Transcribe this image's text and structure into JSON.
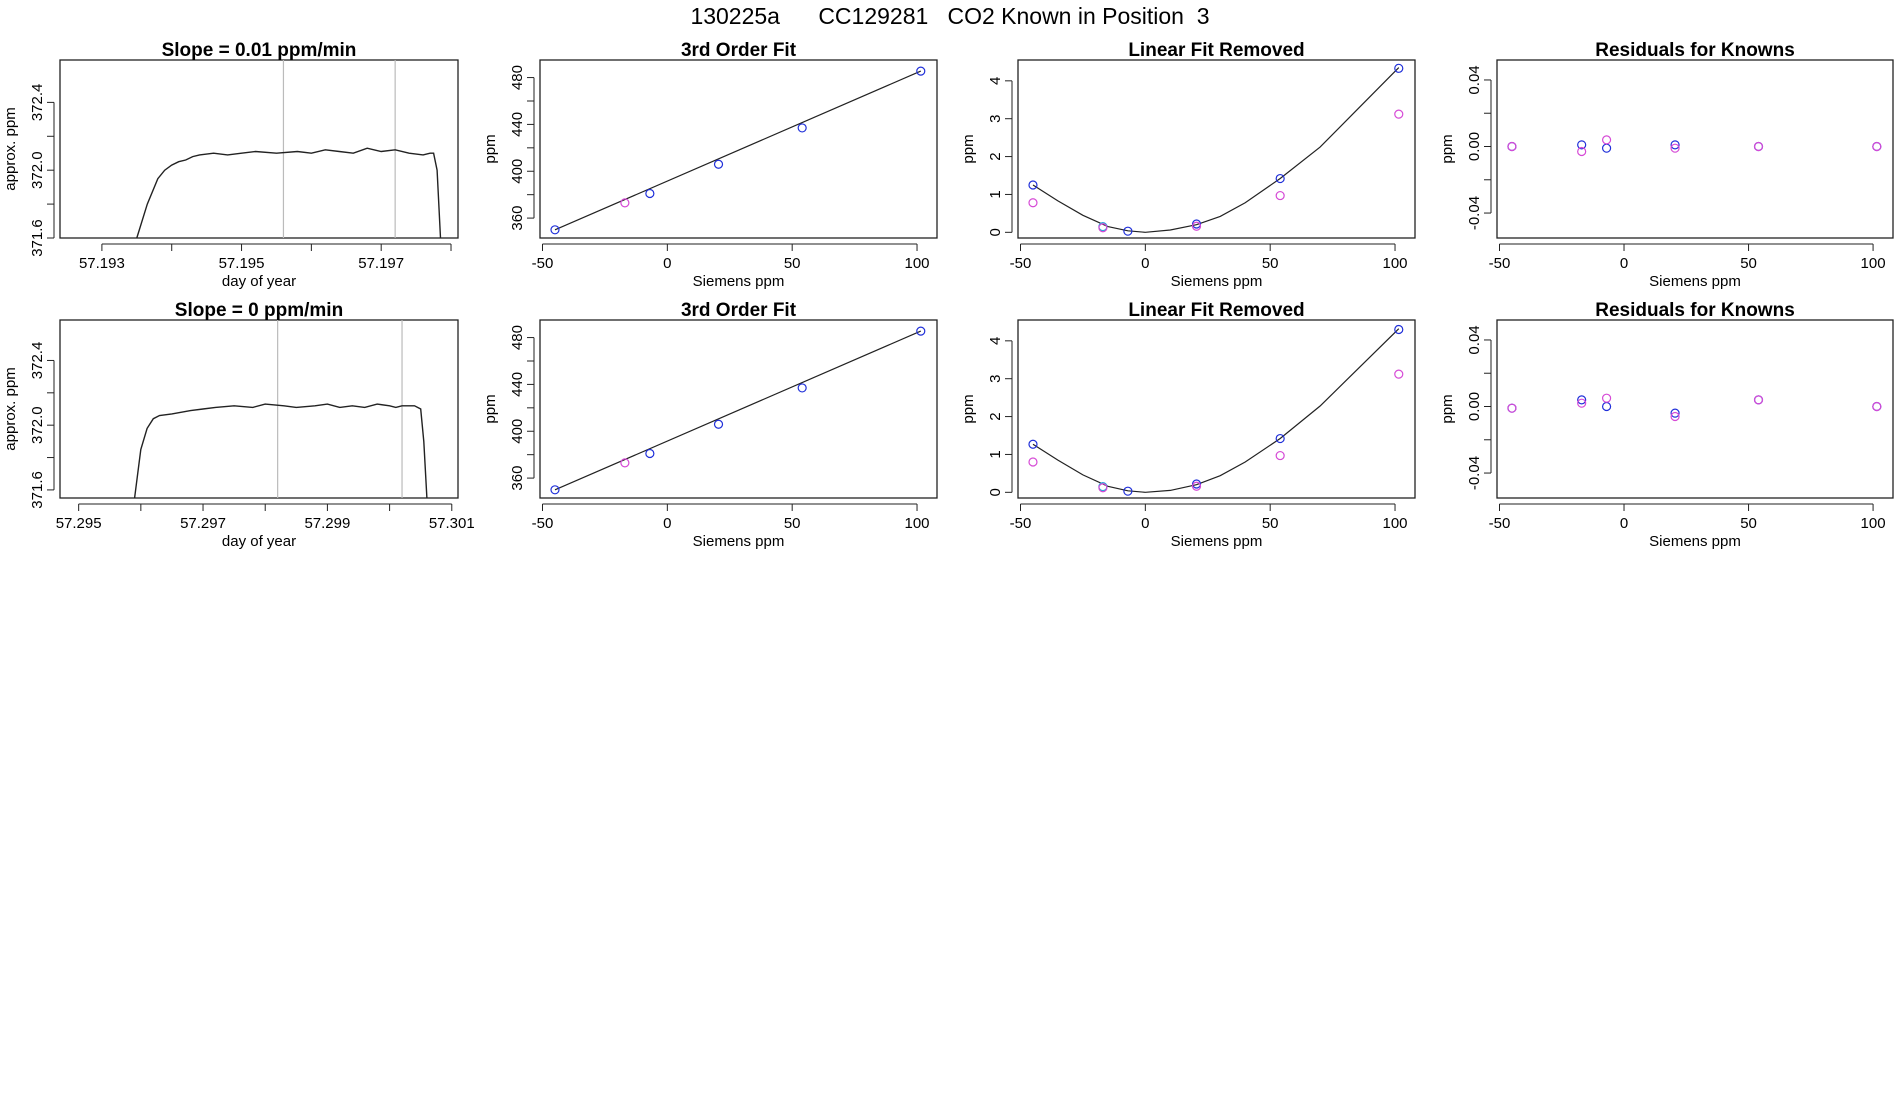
{
  "page": {
    "title": "130225a      CC129281   CO2 Known in Position  3"
  },
  "colors": {
    "line": "#222222",
    "blue": "#1f2fd9",
    "magenta": "#d64ad6",
    "cyan": "#28a8d8",
    "frame": "#222222",
    "vline": "#bbbbbb"
  },
  "chart_data": [
    {
      "type": "line",
      "title": "Slope =  0.01  ppm/min",
      "xlabel": "day of year",
      "ylabel": "approx. ppm",
      "xlim": [
        57.1924,
        57.1981
      ],
      "ylim": [
        371.6,
        372.65
      ],
      "xticks": [
        57.193,
        57.194,
        57.195,
        57.196,
        57.197,
        57.198
      ],
      "xtick_labels": [
        "57.193",
        "",
        "57.195",
        "",
        "57.197",
        ""
      ],
      "yticks": [
        371.6,
        371.8,
        372.0,
        372.2,
        372.4
      ],
      "ytick_labels": [
        "371.6",
        "",
        "372.0",
        "",
        "372.4"
      ],
      "vlines": [
        57.1956,
        57.1972
      ],
      "series": [
        {
          "x": [
            57.1935,
            57.19365,
            57.1938,
            57.1939,
            57.194,
            57.1941,
            57.1942,
            57.1943,
            57.1944,
            57.1946,
            57.1948,
            57.195,
            57.1952,
            57.1955,
            57.1958,
            57.196,
            57.1962,
            57.1964,
            57.1966,
            57.1968,
            57.197,
            57.1972,
            57.1974,
            57.1976,
            57.1977,
            57.19775,
            57.1978,
            57.19785
          ],
          "y": [
            371.6,
            371.8,
            371.95,
            372.0,
            372.03,
            372.05,
            372.06,
            372.08,
            372.09,
            372.1,
            372.09,
            372.1,
            372.11,
            372.1,
            372.11,
            372.1,
            372.12,
            372.11,
            372.1,
            372.13,
            372.11,
            372.12,
            372.1,
            372.09,
            372.1,
            372.1,
            372.0,
            371.6
          ]
        }
      ]
    },
    {
      "type": "scatter",
      "title": "3rd Order Fit",
      "xlabel": "Siemens ppm",
      "ylabel": "ppm",
      "xlim": [
        -51,
        108
      ],
      "ylim": [
        343,
        495
      ],
      "xticks": [
        -50,
        0,
        50,
        100
      ],
      "xtick_labels": [
        "-50",
        "0",
        "50",
        "100"
      ],
      "yticks": [
        360,
        380,
        400,
        420,
        440,
        460,
        480
      ],
      "ytick_labels": [
        "360",
        "",
        "400",
        "",
        "440",
        "",
        "480"
      ],
      "curve": [
        [
          -45,
          350
        ],
        [
          101.5,
          485.5
        ]
      ],
      "points": [
        {
          "x": -45,
          "y": 350,
          "c": "blue"
        },
        {
          "x": -17,
          "y": 373,
          "c": "magenta"
        },
        {
          "x": -7,
          "y": 381,
          "c": "blue"
        },
        {
          "x": 20.5,
          "y": 406,
          "c": "blue"
        },
        {
          "x": 54,
          "y": 437,
          "c": "blue"
        },
        {
          "x": 101.5,
          "y": 485.5,
          "c": "blue"
        }
      ]
    },
    {
      "type": "scatter",
      "title": "Linear Fit Removed",
      "xlabel": "Siemens ppm",
      "ylabel": "ppm",
      "xlim": [
        -51,
        108
      ],
      "ylim": [
        -0.15,
        4.55
      ],
      "xticks": [
        -50,
        0,
        50,
        100
      ],
      "xtick_labels": [
        "-50",
        "0",
        "50",
        "100"
      ],
      "yticks": [
        0,
        1,
        2,
        3,
        4
      ],
      "ytick_labels": [
        "0",
        "1",
        "2",
        "3",
        "4"
      ],
      "curve": [
        [
          -45,
          1.25
        ],
        [
          -35,
          0.83
        ],
        [
          -25,
          0.45
        ],
        [
          -15,
          0.15
        ],
        [
          -7,
          0.04
        ],
        [
          0,
          0.0
        ],
        [
          10,
          0.06
        ],
        [
          20.5,
          0.2
        ],
        [
          30,
          0.42
        ],
        [
          40,
          0.78
        ],
        [
          54,
          1.42
        ],
        [
          70,
          2.25
        ],
        [
          85,
          3.25
        ],
        [
          101.5,
          4.35
        ]
      ],
      "points": [
        {
          "x": -45,
          "y": 1.25,
          "c": "blue"
        },
        {
          "x": -45,
          "y": 0.78,
          "c": "magenta"
        },
        {
          "x": -17,
          "y": 0.15,
          "c": "cyan"
        },
        {
          "x": -17,
          "y": 0.12,
          "c": "magenta"
        },
        {
          "x": -7,
          "y": 0.03,
          "c": "blue"
        },
        {
          "x": 20.5,
          "y": 0.22,
          "c": "blue"
        },
        {
          "x": 20.5,
          "y": 0.16,
          "c": "magenta"
        },
        {
          "x": 54,
          "y": 1.42,
          "c": "blue"
        },
        {
          "x": 54,
          "y": 0.97,
          "c": "magenta"
        },
        {
          "x": 101.5,
          "y": 4.33,
          "c": "blue"
        },
        {
          "x": 101.5,
          "y": 3.12,
          "c": "magenta"
        }
      ]
    },
    {
      "type": "scatter",
      "title": "Residuals for Knowns",
      "xlabel": "Siemens ppm",
      "ylabel": "ppm",
      "xlim": [
        -51,
        108
      ],
      "ylim": [
        -0.055,
        0.052
      ],
      "xticks": [
        -50,
        0,
        50,
        100
      ],
      "xtick_labels": [
        "-50",
        "0",
        "50",
        "100"
      ],
      "yticks": [
        -0.04,
        -0.02,
        0,
        0.02,
        0.04
      ],
      "ytick_labels": [
        "-0.04",
        "",
        "0.00",
        "",
        "0.04"
      ],
      "points": [
        {
          "x": -45,
          "y": 0.0,
          "c": "blue"
        },
        {
          "x": -45,
          "y": 0.0,
          "c": "magenta"
        },
        {
          "x": -17,
          "y": 0.001,
          "c": "blue"
        },
        {
          "x": -17,
          "y": -0.003,
          "c": "magenta"
        },
        {
          "x": -7,
          "y": -0.001,
          "c": "blue"
        },
        {
          "x": -7,
          "y": 0.004,
          "c": "magenta"
        },
        {
          "x": 20.5,
          "y": 0.001,
          "c": "blue"
        },
        {
          "x": 20.5,
          "y": -0.001,
          "c": "magenta"
        },
        {
          "x": 54,
          "y": 0.0,
          "c": "blue"
        },
        {
          "x": 54,
          "y": 0.0,
          "c": "magenta"
        },
        {
          "x": 101.5,
          "y": 0.0,
          "c": "blue"
        },
        {
          "x": 101.5,
          "y": 0.0,
          "c": "magenta"
        }
      ]
    },
    {
      "type": "line",
      "title": "Slope =  0  ppm/min",
      "xlabel": "day of year",
      "ylabel": "approx. ppm",
      "xlim": [
        57.2947,
        57.3011
      ],
      "ylim": [
        371.55,
        372.65
      ],
      "xticks": [
        57.295,
        57.296,
        57.297,
        57.298,
        57.299,
        57.3,
        57.301
      ],
      "xtick_labels": [
        "57.295",
        "",
        "57.297",
        "",
        "57.299",
        "",
        "57.301"
      ],
      "yticks": [
        371.6,
        371.8,
        372.0,
        372.2,
        372.4
      ],
      "ytick_labels": [
        "371.6",
        "",
        "372.0",
        "",
        "372.4"
      ],
      "vlines": [
        57.2982,
        57.3002
      ],
      "series": [
        {
          "x": [
            57.2959,
            57.29595,
            57.296,
            57.2961,
            57.2962,
            57.2963,
            57.2965,
            57.2968,
            57.297,
            57.2972,
            57.2975,
            57.2978,
            57.298,
            57.2983,
            57.2985,
            57.2988,
            57.299,
            57.2992,
            57.2994,
            57.2996,
            57.2998,
            57.3,
            57.3001,
            57.3002,
            57.3004,
            57.3005,
            57.30055,
            57.3006
          ],
          "y": [
            371.55,
            371.7,
            371.85,
            371.98,
            372.04,
            372.06,
            372.07,
            372.09,
            372.1,
            372.11,
            372.12,
            372.11,
            372.13,
            372.12,
            372.11,
            372.12,
            372.13,
            372.11,
            372.12,
            372.11,
            372.13,
            372.12,
            372.11,
            372.12,
            372.12,
            372.1,
            371.9,
            371.55
          ]
        }
      ]
    },
    {
      "type": "scatter",
      "title": "3rd Order Fit",
      "xlabel": "Siemens ppm",
      "ylabel": "ppm",
      "xlim": [
        -51,
        108
      ],
      "ylim": [
        343,
        495
      ],
      "xticks": [
        -50,
        0,
        50,
        100
      ],
      "xtick_labels": [
        "-50",
        "0",
        "50",
        "100"
      ],
      "yticks": [
        360,
        380,
        400,
        420,
        440,
        460,
        480
      ],
      "ytick_labels": [
        "360",
        "",
        "400",
        "",
        "440",
        "",
        "480"
      ],
      "curve": [
        [
          -45,
          350
        ],
        [
          101.5,
          485.5
        ]
      ],
      "points": [
        {
          "x": -45,
          "y": 350,
          "c": "blue"
        },
        {
          "x": -17,
          "y": 373,
          "c": "magenta"
        },
        {
          "x": -7,
          "y": 381,
          "c": "blue"
        },
        {
          "x": 20.5,
          "y": 406,
          "c": "blue"
        },
        {
          "x": 54,
          "y": 437,
          "c": "blue"
        },
        {
          "x": 101.5,
          "y": 485.5,
          "c": "blue"
        }
      ]
    },
    {
      "type": "scatter",
      "title": "Linear Fit Removed",
      "xlabel": "Siemens ppm",
      "ylabel": "ppm",
      "xlim": [
        -51,
        108
      ],
      "ylim": [
        -0.15,
        4.55
      ],
      "xticks": [
        -50,
        0,
        50,
        100
      ],
      "xtick_labels": [
        "-50",
        "0",
        "50",
        "100"
      ],
      "yticks": [
        0,
        1,
        2,
        3,
        4
      ],
      "ytick_labels": [
        "0",
        "1",
        "2",
        "3",
        "4"
      ],
      "curve": [
        [
          -45,
          1.27
        ],
        [
          -35,
          0.85
        ],
        [
          -25,
          0.46
        ],
        [
          -15,
          0.16
        ],
        [
          -7,
          0.04
        ],
        [
          0,
          0.0
        ],
        [
          10,
          0.05
        ],
        [
          20.5,
          0.2
        ],
        [
          30,
          0.44
        ],
        [
          40,
          0.8
        ],
        [
          54,
          1.42
        ],
        [
          70,
          2.28
        ],
        [
          85,
          3.25
        ],
        [
          101.5,
          4.32
        ]
      ],
      "points": [
        {
          "x": -45,
          "y": 1.27,
          "c": "blue"
        },
        {
          "x": -45,
          "y": 0.8,
          "c": "magenta"
        },
        {
          "x": -17,
          "y": 0.15,
          "c": "cyan"
        },
        {
          "x": -17,
          "y": 0.12,
          "c": "magenta"
        },
        {
          "x": -7,
          "y": 0.03,
          "c": "blue"
        },
        {
          "x": 20.5,
          "y": 0.22,
          "c": "blue"
        },
        {
          "x": 20.5,
          "y": 0.16,
          "c": "magenta"
        },
        {
          "x": 54,
          "y": 1.42,
          "c": "blue"
        },
        {
          "x": 54,
          "y": 0.97,
          "c": "magenta"
        },
        {
          "x": 101.5,
          "y": 4.3,
          "c": "blue"
        },
        {
          "x": 101.5,
          "y": 3.12,
          "c": "magenta"
        }
      ]
    },
    {
      "type": "scatter",
      "title": "Residuals for Knowns",
      "xlabel": "Siemens ppm",
      "ylabel": "ppm",
      "xlim": [
        -51,
        108
      ],
      "ylim": [
        -0.055,
        0.052
      ],
      "xticks": [
        -50,
        0,
        50,
        100
      ],
      "xtick_labels": [
        "-50",
        "0",
        "50",
        "100"
      ],
      "yticks": [
        -0.04,
        -0.02,
        0,
        0.02,
        0.04
      ],
      "ytick_labels": [
        "-0.04",
        "",
        "0.00",
        "",
        "0.04"
      ],
      "points": [
        {
          "x": -45,
          "y": -0.001,
          "c": "blue"
        },
        {
          "x": -45,
          "y": -0.001,
          "c": "magenta"
        },
        {
          "x": -17,
          "y": 0.004,
          "c": "blue"
        },
        {
          "x": -17,
          "y": 0.002,
          "c": "magenta"
        },
        {
          "x": -7,
          "y": 0.0,
          "c": "blue"
        },
        {
          "x": -7,
          "y": 0.005,
          "c": "magenta"
        },
        {
          "x": 20.5,
          "y": -0.004,
          "c": "blue"
        },
        {
          "x": 20.5,
          "y": -0.006,
          "c": "magenta"
        },
        {
          "x": 54,
          "y": 0.004,
          "c": "blue"
        },
        {
          "x": 54,
          "y": 0.004,
          "c": "magenta"
        },
        {
          "x": 101.5,
          "y": 0.0,
          "c": "blue"
        },
        {
          "x": 101.5,
          "y": 0.0,
          "c": "magenta"
        }
      ]
    }
  ]
}
